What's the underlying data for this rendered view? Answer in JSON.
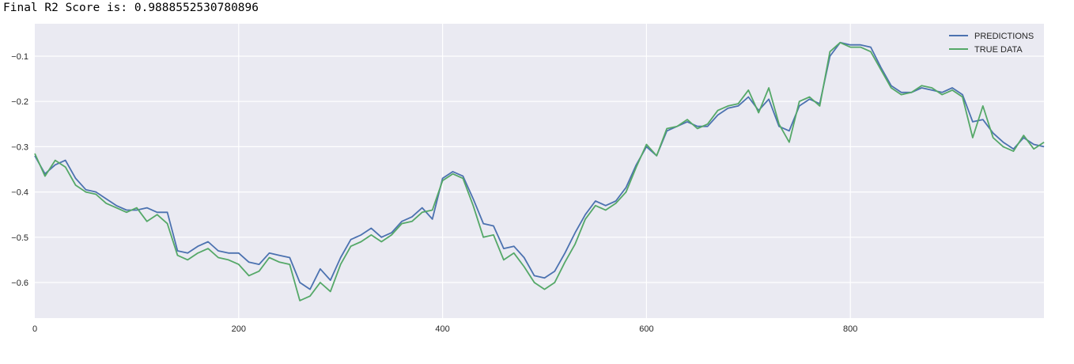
{
  "output_text": "Final R2 Score is: 0.9888552530780896",
  "colors": {
    "background": "#EAEAF2",
    "grid": "#FFFFFF",
    "predictions": "#4C72B0",
    "true_data": "#55A868",
    "tick_text": "#262626"
  },
  "legend": {
    "items": [
      {
        "label": "PREDICTIONS",
        "color": "#4C72B0"
      },
      {
        "label": "TRUE DATA",
        "color": "#55A868"
      }
    ]
  },
  "axes": {
    "x_ticks": [
      "0",
      "200",
      "400",
      "600",
      "800"
    ],
    "y_ticks": [
      "-0.1",
      "-0.2",
      "-0.3",
      "-0.4",
      "-0.5",
      "-0.6"
    ]
  },
  "chart_data": {
    "type": "line",
    "title": "",
    "xlabel": "",
    "ylabel": "",
    "xlim": [
      0,
      990
    ],
    "ylim": [
      -0.68,
      -0.03
    ],
    "grid": true,
    "legend_position": "upper right",
    "x": [
      0,
      10,
      20,
      30,
      40,
      50,
      60,
      70,
      80,
      90,
      100,
      110,
      120,
      130,
      140,
      150,
      160,
      170,
      180,
      190,
      200,
      210,
      220,
      230,
      240,
      250,
      260,
      270,
      280,
      290,
      300,
      310,
      320,
      330,
      340,
      350,
      360,
      370,
      380,
      390,
      400,
      410,
      420,
      430,
      440,
      450,
      460,
      470,
      480,
      490,
      500,
      510,
      520,
      530,
      540,
      550,
      560,
      570,
      580,
      590,
      600,
      610,
      620,
      630,
      640,
      650,
      660,
      670,
      680,
      690,
      700,
      710,
      720,
      730,
      740,
      750,
      760,
      770,
      780,
      790,
      800,
      810,
      820,
      830,
      840,
      850,
      860,
      870,
      880,
      890,
      900,
      910,
      920,
      930,
      940,
      950,
      960,
      970,
      980,
      990
    ],
    "series": [
      {
        "name": "PREDICTIONS",
        "values": [
          -0.32,
          -0.36,
          -0.34,
          -0.33,
          -0.37,
          -0.395,
          -0.4,
          -0.415,
          -0.43,
          -0.44,
          -0.44,
          -0.435,
          -0.445,
          -0.445,
          -0.53,
          -0.535,
          -0.52,
          -0.51,
          -0.53,
          -0.535,
          -0.535,
          -0.555,
          -0.56,
          -0.535,
          -0.54,
          -0.545,
          -0.6,
          -0.615,
          -0.57,
          -0.595,
          -0.545,
          -0.505,
          -0.495,
          -0.48,
          -0.5,
          -0.49,
          -0.465,
          -0.455,
          -0.435,
          -0.46,
          -0.37,
          -0.355,
          -0.365,
          -0.415,
          -0.47,
          -0.475,
          -0.525,
          -0.52,
          -0.545,
          -0.585,
          -0.59,
          -0.575,
          -0.535,
          -0.49,
          -0.45,
          -0.42,
          -0.43,
          -0.42,
          -0.39,
          -0.34,
          -0.3,
          -0.32,
          -0.265,
          -0.255,
          -0.245,
          -0.255,
          -0.255,
          -0.23,
          -0.215,
          -0.21,
          -0.19,
          -0.22,
          -0.195,
          -0.255,
          -0.265,
          -0.21,
          -0.195,
          -0.205,
          -0.1,
          -0.07,
          -0.075,
          -0.075,
          -0.08,
          -0.125,
          -0.165,
          -0.18,
          -0.18,
          -0.17,
          -0.175,
          -0.18,
          -0.17,
          -0.185,
          -0.245,
          -0.24,
          -0.27,
          -0.29,
          -0.305,
          -0.28,
          -0.295,
          -0.3
        ]
      },
      {
        "name": "TRUE DATA",
        "values": [
          -0.315,
          -0.365,
          -0.33,
          -0.345,
          -0.385,
          -0.4,
          -0.405,
          -0.425,
          -0.435,
          -0.445,
          -0.435,
          -0.465,
          -0.45,
          -0.47,
          -0.54,
          -0.55,
          -0.535,
          -0.525,
          -0.545,
          -0.55,
          -0.56,
          -0.585,
          -0.575,
          -0.545,
          -0.555,
          -0.56,
          -0.64,
          -0.63,
          -0.6,
          -0.62,
          -0.56,
          -0.52,
          -0.51,
          -0.495,
          -0.51,
          -0.495,
          -0.47,
          -0.465,
          -0.445,
          -0.44,
          -0.375,
          -0.36,
          -0.37,
          -0.43,
          -0.5,
          -0.495,
          -0.55,
          -0.535,
          -0.565,
          -0.6,
          -0.615,
          -0.6,
          -0.555,
          -0.515,
          -0.46,
          -0.43,
          -0.44,
          -0.425,
          -0.4,
          -0.345,
          -0.295,
          -0.32,
          -0.26,
          -0.255,
          -0.24,
          -0.26,
          -0.25,
          -0.22,
          -0.21,
          -0.205,
          -0.175,
          -0.225,
          -0.17,
          -0.25,
          -0.29,
          -0.2,
          -0.19,
          -0.21,
          -0.09,
          -0.07,
          -0.08,
          -0.08,
          -0.09,
          -0.13,
          -0.17,
          -0.185,
          -0.18,
          -0.165,
          -0.17,
          -0.185,
          -0.175,
          -0.19,
          -0.28,
          -0.21,
          -0.28,
          -0.3,
          -0.31,
          -0.275,
          -0.305,
          -0.29
        ]
      }
    ]
  }
}
